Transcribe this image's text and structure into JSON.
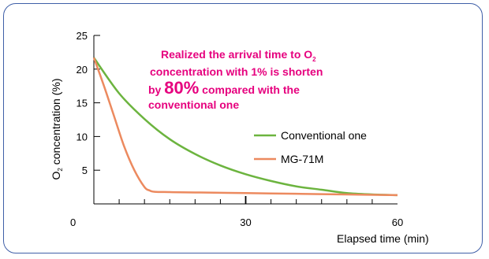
{
  "chart_data": {
    "type": "line",
    "xlabel": "Elapsed time (min)",
    "ylabel": {
      "main": "O",
      "sub": "2",
      "rest": " concentration (%)"
    },
    "xlim": [
      0,
      60
    ],
    "ylim": [
      0,
      25
    ],
    "x_ticks": [
      0,
      30,
      60
    ],
    "y_ticks": [
      5,
      10,
      15,
      20,
      25
    ],
    "grid": false,
    "legend_placement": "right",
    "series": [
      {
        "name": "Conventional one",
        "color": "#6cb43f",
        "x": [
          0,
          5,
          10,
          15,
          20,
          25,
          30,
          35,
          40,
          45,
          50,
          55,
          60
        ],
        "y": [
          21.7,
          16.4,
          12.6,
          9.6,
          7.4,
          5.7,
          4.4,
          3.4,
          2.6,
          2.1,
          1.6,
          1.4,
          1.3
        ]
      },
      {
        "name": "MG-71M",
        "color": "#ec8a5f",
        "x": [
          0,
          2,
          4,
          6,
          8,
          10,
          11,
          12,
          15,
          20,
          30,
          40,
          50,
          60
        ],
        "y": [
          21.7,
          17.5,
          13.0,
          8.5,
          5.0,
          2.5,
          2.0,
          1.8,
          1.75,
          1.7,
          1.6,
          1.5,
          1.4,
          1.3
        ]
      }
    ],
    "annotation": {
      "line1_a": "Realized the arrival time to O",
      "line1_sub": "2",
      "line2": "concentration with 1% is shorten",
      "line3_a": "by ",
      "line3_big": "80%",
      "line3_b": " compared with the",
      "line4": "conventional one",
      "color": "#e6007e"
    }
  }
}
